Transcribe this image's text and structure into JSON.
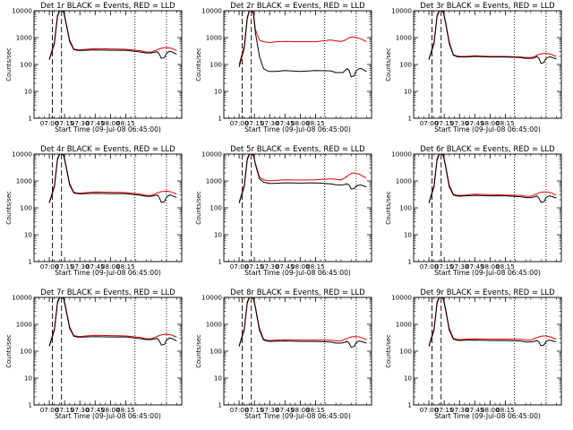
{
  "chart_data": [
    {
      "type": "line",
      "title": "Det 1r BLACK = Events, RED = LLD",
      "xlabel": "Start Time (09-Jul-08 06:45:00)",
      "ylabel": "Counts/sec",
      "x_ticks": [
        "07:00",
        "07:15",
        "07:30",
        "07:45",
        "08:00",
        "08:15"
      ],
      "y_ticks": [
        "1",
        "10",
        "100",
        "1000",
        "10000"
      ],
      "x_minutes": [
        0,
        5,
        8,
        10,
        12,
        14,
        16,
        20,
        24,
        27,
        30,
        36,
        45,
        60,
        75,
        90,
        95,
        100,
        102,
        104,
        106,
        108,
        110,
        113,
        115,
        118,
        120,
        125
      ],
      "series": [
        {
          "name": "Events",
          "color": "#000000",
          "values": [
            150,
            600,
            6000,
            12000,
            12000,
            9000,
            4000,
            700,
            360,
            340,
            330,
            340,
            350,
            340,
            340,
            290,
            270,
            270,
            280,
            290,
            300,
            240,
            170,
            180,
            260,
            310,
            300,
            240
          ]
        },
        {
          "name": "LLD",
          "color": "#e00000",
          "values": [
            160,
            700,
            7000,
            13000,
            13000,
            10000,
            4500,
            800,
            380,
            360,
            350,
            370,
            390,
            380,
            370,
            320,
            290,
            290,
            310,
            330,
            360,
            380,
            400,
            420,
            430,
            410,
            400,
            330
          ]
        }
      ],
      "markers": {
        "dashed": [
          3,
          12
        ],
        "dotted": [
          84,
          115
        ]
      },
      "ylim": [
        1,
        10000
      ]
    },
    {
      "type": "line",
      "title": "Det 2r BLACK = Events, RED = LLD",
      "xlabel": "Start Time (09-Jul-08 06:45:00)",
      "ylabel": "Counts/sec",
      "x_ticks": [
        "07:00",
        "07:15",
        "07:30",
        "07:45",
        "08:00",
        "08:15"
      ],
      "y_ticks": [
        "1",
        "10",
        "100",
        "1000",
        "10000"
      ],
      "x_minutes": [
        0,
        5,
        8,
        10,
        12,
        14,
        16,
        20,
        24,
        27,
        30,
        36,
        45,
        60,
        75,
        90,
        95,
        100,
        102,
        104,
        106,
        108,
        110,
        113,
        115,
        118,
        120,
        125
      ],
      "series": [
        {
          "name": "Events",
          "color": "#000000",
          "values": [
            80,
            400,
            5000,
            11000,
            11000,
            8000,
            1500,
            200,
            70,
            60,
            55,
            55,
            60,
            55,
            60,
            58,
            50,
            50,
            50,
            60,
            70,
            60,
            35,
            38,
            60,
            70,
            70,
            55
          ]
        },
        {
          "name": "LLD",
          "color": "#e00000",
          "values": [
            100,
            500,
            6000,
            12000,
            12000,
            9000,
            2000,
            800,
            700,
            680,
            650,
            700,
            720,
            700,
            700,
            820,
            760,
            720,
            760,
            800,
            900,
            1000,
            1050,
            1050,
            1000,
            950,
            880,
            700
          ]
        }
      ],
      "markers": {
        "dashed": [
          3,
          12
        ],
        "dotted": [
          84,
          115
        ]
      },
      "ylim": [
        1,
        10000
      ]
    },
    {
      "type": "line",
      "title": "Det 3r BLACK = Events, RED = LLD",
      "xlabel": "Start Time (09-Jul-08 06:45:00)",
      "ylabel": "Counts/sec",
      "x_ticks": [
        "07:00",
        "07:15",
        "07:30",
        "07:45",
        "08:00",
        "08:15"
      ],
      "y_ticks": [
        "1",
        "10",
        "100",
        "1000",
        "10000"
      ],
      "x_minutes": [
        0,
        5,
        8,
        10,
        12,
        14,
        16,
        20,
        24,
        27,
        30,
        36,
        45,
        60,
        75,
        90,
        95,
        100,
        102,
        104,
        106,
        108,
        110,
        113,
        115,
        118,
        120,
        125
      ],
      "series": [
        {
          "name": "Events",
          "color": "#000000",
          "values": [
            150,
            600,
            6000,
            12000,
            12000,
            9000,
            4000,
            600,
            220,
            200,
            190,
            190,
            200,
            190,
            190,
            180,
            170,
            170,
            170,
            180,
            200,
            170,
            110,
            120,
            170,
            190,
            190,
            160
          ]
        },
        {
          "name": "LLD",
          "color": "#e00000",
          "values": [
            160,
            700,
            7000,
            13000,
            13000,
            10000,
            4500,
            700,
            230,
            210,
            200,
            200,
            210,
            200,
            200,
            190,
            180,
            180,
            190,
            200,
            220,
            240,
            250,
            260,
            260,
            250,
            240,
            200
          ]
        }
      ],
      "markers": {
        "dashed": [
          3,
          12
        ],
        "dotted": [
          84,
          115
        ]
      },
      "ylim": [
        1,
        10000
      ]
    },
    {
      "type": "line",
      "title": "Det 4r BLACK = Events, RED = LLD",
      "xlabel": "Start Time (09-Jul-08 06:45:00)",
      "ylabel": "Counts/sec",
      "x_ticks": [
        "07:00",
        "07:15",
        "07:30",
        "07:45",
        "08:00",
        "08:15"
      ],
      "y_ticks": [
        "1",
        "10",
        "100",
        "1000",
        "10000"
      ],
      "x_minutes": [
        0,
        5,
        8,
        10,
        12,
        14,
        16,
        20,
        24,
        27,
        30,
        36,
        45,
        60,
        75,
        90,
        95,
        100,
        102,
        104,
        106,
        108,
        110,
        113,
        115,
        118,
        120,
        125
      ],
      "series": [
        {
          "name": "Events",
          "color": "#000000",
          "values": [
            150,
            600,
            6000,
            12000,
            12000,
            9000,
            4000,
            700,
            360,
            340,
            330,
            340,
            350,
            340,
            340,
            290,
            270,
            270,
            280,
            290,
            300,
            240,
            160,
            170,
            250,
            300,
            290,
            240
          ]
        },
        {
          "name": "LLD",
          "color": "#e00000",
          "values": [
            160,
            700,
            7000,
            13000,
            13000,
            10000,
            4500,
            800,
            380,
            360,
            350,
            370,
            390,
            380,
            370,
            320,
            290,
            290,
            310,
            330,
            360,
            380,
            400,
            410,
            420,
            400,
            390,
            320
          ]
        }
      ],
      "markers": {
        "dashed": [
          3,
          12
        ],
        "dotted": [
          84,
          115
        ]
      },
      "ylim": [
        1,
        10000
      ]
    },
    {
      "type": "line",
      "title": "Det 5r BLACK = Events, RED = LLD",
      "xlabel": "Start Time (09-Jul-08 06:45:00)",
      "ylabel": "Counts/sec",
      "x_ticks": [
        "07:00",
        "07:15",
        "07:30",
        "07:45",
        "08:00",
        "08:15"
      ],
      "y_ticks": [
        "1",
        "10",
        "100",
        "1000",
        "10000"
      ],
      "x_minutes": [
        0,
        5,
        8,
        10,
        12,
        14,
        16,
        20,
        24,
        27,
        30,
        36,
        45,
        60,
        75,
        90,
        95,
        100,
        102,
        104,
        106,
        108,
        110,
        113,
        115,
        118,
        120,
        125
      ],
      "series": [
        {
          "name": "Events",
          "color": "#000000",
          "values": [
            150,
            600,
            6000,
            12000,
            12000,
            9000,
            4000,
            1200,
            900,
            850,
            800,
            820,
            850,
            830,
            850,
            780,
            720,
            700,
            720,
            750,
            780,
            700,
            500,
            520,
            650,
            700,
            700,
            600
          ]
        },
        {
          "name": "LLD",
          "color": "#e00000",
          "values": [
            160,
            700,
            7000,
            13000,
            13000,
            10000,
            4500,
            1400,
            1100,
            1050,
            1000,
            1050,
            1100,
            1080,
            1100,
            1200,
            1150,
            1100,
            1200,
            1300,
            1500,
            1700,
            1900,
            2000,
            1900,
            1800,
            1600,
            1300
          ]
        }
      ],
      "markers": {
        "dashed": [
          3,
          12
        ],
        "dotted": [
          84,
          115
        ]
      },
      "ylim": [
        1,
        10000
      ]
    },
    {
      "type": "line",
      "title": "Det 6r BLACK = Events, RED = LLD",
      "xlabel": "Start Time (09-Jul-08 06:45:00)",
      "ylabel": "Counts/sec",
      "x_ticks": [
        "07:00",
        "07:15",
        "07:30",
        "07:45",
        "08:00",
        "08:15"
      ],
      "y_ticks": [
        "1",
        "10",
        "100",
        "1000",
        "10000"
      ],
      "x_minutes": [
        0,
        5,
        8,
        10,
        12,
        14,
        16,
        20,
        24,
        27,
        30,
        36,
        45,
        60,
        75,
        90,
        95,
        100,
        102,
        104,
        106,
        108,
        110,
        113,
        115,
        118,
        120,
        125
      ],
      "series": [
        {
          "name": "Events",
          "color": "#000000",
          "values": [
            150,
            600,
            6000,
            12000,
            12000,
            9000,
            4000,
            600,
            300,
            280,
            270,
            280,
            290,
            280,
            280,
            260,
            240,
            240,
            250,
            260,
            280,
            230,
            160,
            170,
            240,
            280,
            270,
            230
          ]
        },
        {
          "name": "LLD",
          "color": "#e00000",
          "values": [
            160,
            700,
            7000,
            13000,
            13000,
            10000,
            4500,
            700,
            320,
            300,
            290,
            300,
            320,
            310,
            300,
            290,
            270,
            270,
            290,
            310,
            330,
            360,
            380,
            390,
            390,
            380,
            360,
            300
          ]
        }
      ],
      "markers": {
        "dashed": [
          3,
          12
        ],
        "dotted": [
          84,
          115
        ]
      },
      "ylim": [
        1,
        10000
      ]
    },
    {
      "type": "line",
      "title": "Det 7r BLACK = Events, RED = LLD",
      "xlabel": "Start Time (09-Jul-08 06:45:00)",
      "ylabel": "Counts/sec",
      "x_ticks": [
        "07:00",
        "07:15",
        "07:30",
        "07:45",
        "08:00",
        "08:15"
      ],
      "y_ticks": [
        "1",
        "10",
        "100",
        "1000",
        "10000"
      ],
      "x_minutes": [
        0,
        5,
        8,
        10,
        12,
        14,
        16,
        20,
        24,
        27,
        30,
        36,
        45,
        60,
        75,
        90,
        95,
        100,
        102,
        104,
        106,
        108,
        110,
        113,
        115,
        118,
        120,
        125
      ],
      "series": [
        {
          "name": "Events",
          "color": "#000000",
          "values": [
            150,
            600,
            6000,
            12000,
            12000,
            9000,
            4000,
            700,
            360,
            340,
            330,
            340,
            350,
            340,
            340,
            290,
            270,
            270,
            280,
            290,
            300,
            240,
            170,
            180,
            260,
            310,
            300,
            240
          ]
        },
        {
          "name": "LLD",
          "color": "#e00000",
          "values": [
            160,
            700,
            7000,
            13000,
            13000,
            10000,
            4500,
            800,
            380,
            360,
            350,
            370,
            390,
            380,
            370,
            320,
            290,
            290,
            310,
            330,
            360,
            380,
            400,
            420,
            430,
            410,
            400,
            330
          ]
        }
      ],
      "markers": {
        "dashed": [
          3,
          12
        ],
        "dotted": [
          84,
          115
        ]
      },
      "ylim": [
        1,
        10000
      ]
    },
    {
      "type": "line",
      "title": "Det 8r BLACK = Events, RED = LLD",
      "xlabel": "Start Time (09-Jul-08 06:45:00)",
      "ylabel": "Counts/sec",
      "x_ticks": [
        "07:00",
        "07:15",
        "07:30",
        "07:45",
        "08:00",
        "08:15"
      ],
      "y_ticks": [
        "1",
        "10",
        "100",
        "1000",
        "10000"
      ],
      "x_minutes": [
        0,
        5,
        8,
        10,
        12,
        14,
        16,
        20,
        24,
        27,
        30,
        36,
        45,
        60,
        75,
        90,
        95,
        100,
        102,
        104,
        106,
        108,
        110,
        113,
        115,
        118,
        120,
        125
      ],
      "series": [
        {
          "name": "Events",
          "color": "#000000",
          "values": [
            150,
            600,
            6000,
            12000,
            12000,
            9000,
            4000,
            600,
            260,
            240,
            230,
            235,
            240,
            230,
            230,
            220,
            200,
            200,
            205,
            215,
            230,
            200,
            140,
            150,
            210,
            240,
            230,
            200
          ]
        },
        {
          "name": "LLD",
          "color": "#e00000",
          "values": [
            160,
            700,
            7000,
            13000,
            13000,
            10000,
            4500,
            700,
            280,
            260,
            250,
            260,
            270,
            260,
            260,
            260,
            240,
            240,
            260,
            280,
            300,
            320,
            340,
            350,
            350,
            340,
            320,
            270
          ]
        }
      ],
      "markers": {
        "dashed": [
          3,
          12
        ],
        "dotted": [
          84,
          115
        ]
      },
      "ylim": [
        1,
        10000
      ]
    },
    {
      "type": "line",
      "title": "Det 9r BLACK = Events, RED = LLD",
      "xlabel": "Start Time (09-Jul-08 06:45:00)",
      "ylabel": "Counts/sec",
      "x_ticks": [
        "07:00",
        "07:15",
        "07:30",
        "07:45",
        "08:00",
        "08:15"
      ],
      "y_ticks": [
        "1",
        "10",
        "100",
        "1000",
        "10000"
      ],
      "x_minutes": [
        0,
        5,
        8,
        10,
        12,
        14,
        16,
        20,
        24,
        27,
        30,
        36,
        45,
        60,
        75,
        90,
        95,
        100,
        102,
        104,
        106,
        108,
        110,
        113,
        115,
        118,
        120,
        125
      ],
      "series": [
        {
          "name": "Events",
          "color": "#000000",
          "values": [
            150,
            600,
            6000,
            12000,
            12000,
            9000,
            4000,
            600,
            280,
            260,
            250,
            255,
            260,
            250,
            250,
            240,
            220,
            220,
            225,
            235,
            250,
            220,
            160,
            170,
            230,
            260,
            250,
            220
          ]
        },
        {
          "name": "LLD",
          "color": "#e00000",
          "values": [
            160,
            700,
            7000,
            13000,
            13000,
            10000,
            4500,
            700,
            300,
            280,
            270,
            280,
            290,
            280,
            280,
            280,
            260,
            260,
            280,
            300,
            320,
            340,
            360,
            370,
            370,
            350,
            330,
            280
          ]
        }
      ],
      "markers": {
        "dashed": [
          3,
          12
        ],
        "dotted": [
          84,
          115
        ]
      },
      "ylim": [
        1,
        10000
      ]
    }
  ]
}
